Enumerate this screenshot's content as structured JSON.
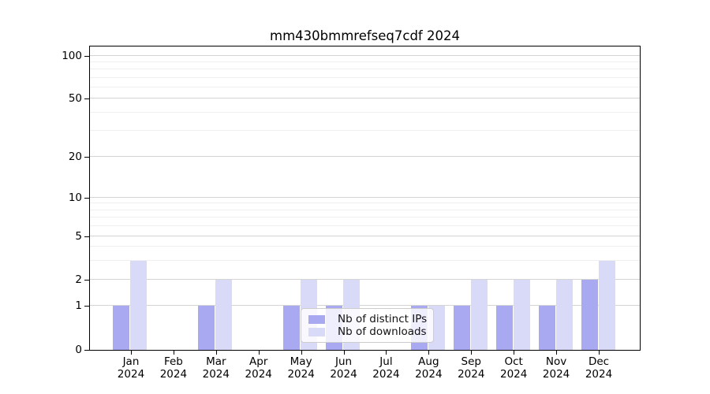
{
  "chart_data": {
    "type": "bar",
    "title": "mm430bmmrefseq7cdf 2024",
    "categories": [
      "Jan\n2024",
      "Feb\n2024",
      "Mar\n2024",
      "Apr\n2024",
      "May\n2024",
      "Jun\n2024",
      "Jul\n2024",
      "Aug\n2024",
      "Sep\n2024",
      "Oct\n2024",
      "Nov\n2024",
      "Dec\n2024"
    ],
    "series": [
      {
        "name": "Nb of distinct IPs",
        "color": "#a9a9f2",
        "values": [
          1,
          0,
          1,
          0,
          1,
          1,
          0,
          1,
          1,
          1,
          1,
          2
        ]
      },
      {
        "name": "Nb of downloads",
        "color": "#d9d9f8",
        "values": [
          3,
          0,
          2,
          0,
          2,
          2,
          0,
          1,
          2,
          2,
          2,
          3
        ]
      }
    ],
    "xlabel": "",
    "ylabel": "",
    "yticks": [
      0,
      1,
      2,
      5,
      10,
      20,
      50,
      100
    ],
    "ylim": [
      0,
      117
    ],
    "scale": "symlog",
    "grid": "horizontal",
    "legend_position": "lower center",
    "layout": {
      "y_anchors": [
        [
          0,
          0
        ],
        [
          1,
          0.1455
        ],
        [
          2,
          0.2312
        ],
        [
          5,
          0.374
        ],
        [
          10,
          0.5013
        ],
        [
          20,
          0.6364
        ],
        [
          50,
          0.8286
        ],
        [
          100,
          0.9688
        ]
      ],
      "minor_gridlines": [
        3,
        4,
        6,
        7,
        8,
        9,
        30,
        40,
        60,
        70,
        80,
        90
      ],
      "x_pad_frac": 0.0746
    },
    "colors": {
      "grid_major": "#d4d4d4",
      "grid_minor": "#efefef",
      "axis": "#000000",
      "text": "#000000",
      "legend_border": "#cccccc",
      "legend_background": "rgba(255,255,255,0.8)"
    }
  }
}
